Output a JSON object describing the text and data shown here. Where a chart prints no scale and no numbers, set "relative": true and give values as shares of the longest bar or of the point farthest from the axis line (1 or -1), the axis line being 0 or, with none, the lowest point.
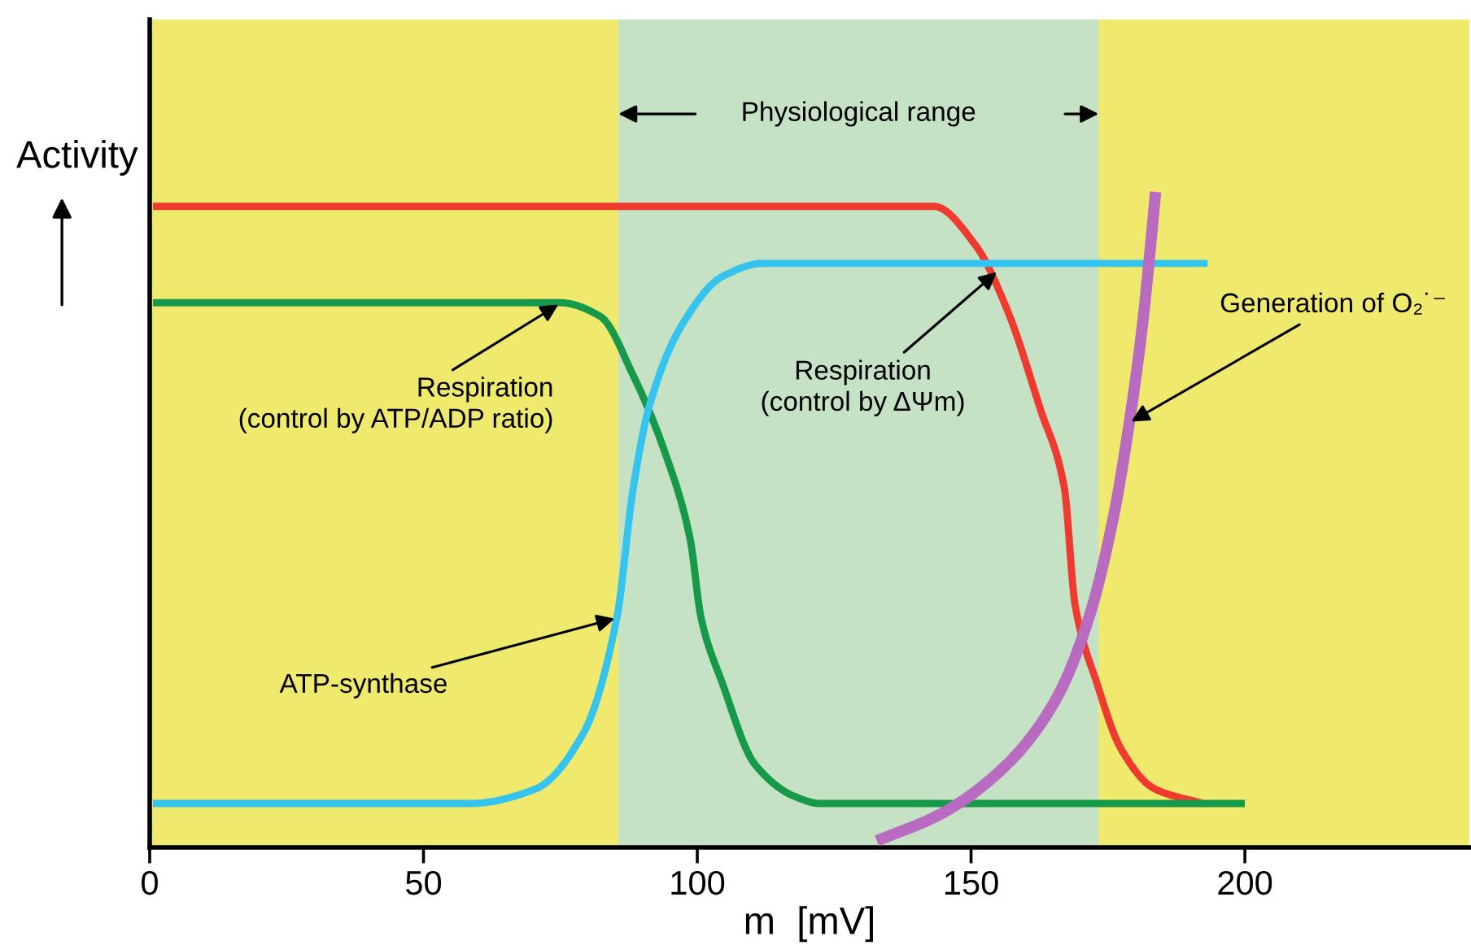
{
  "chart_data": {
    "type": "line",
    "relative": true,
    "xlabel": "m  [mV]",
    "ylabel": "Activity",
    "xlim": [
      0,
      241
    ],
    "xticks": [
      0,
      50,
      100,
      150,
      200
    ],
    "grid": false,
    "legend": false,
    "marker": "none",
    "line_style": "solid",
    "series": [
      {
        "color": "#ee3a2f",
        "x": [
          0.6,
          143.2,
          150.7,
          156.6,
          162.6,
          167,
          169,
          173,
          177.4,
          183.4,
          192.3
        ],
        "values": [
          0.978,
          0.978,
          0.92,
          0.82,
          0.67,
          0.55,
          0.37,
          0.25,
          0.15,
          0.09,
          0.067
        ]
      },
      {
        "color": "#17994a",
        "x": [
          0.6,
          74.9,
          82.3,
          88.3,
          94.2,
          98.7,
          100.7,
          104.6,
          110.5,
          118,
          122.4,
          200
        ],
        "values": [
          0.831,
          0.831,
          0.81,
          0.72,
          0.6,
          0.47,
          0.35,
          0.25,
          0.127,
          0.077,
          0.067,
          0.067
        ]
      },
      {
        "color": "#35c4f0",
        "x": [
          0.6,
          58.5,
          70.4,
          79.3,
          85.3,
          88.3,
          91.2,
          97.2,
          104.6,
          112,
          193.2
        ],
        "values": [
          0.067,
          0.067,
          0.089,
          0.176,
          0.35,
          0.548,
          0.672,
          0.797,
          0.871,
          0.891,
          0.891
        ]
      },
      {
        "color": "#b86bc0",
        "x": [
          132.8,
          144.7,
          156.6,
          165.5,
          171.5,
          175.9,
          178.9,
          181.3,
          182.8,
          183.7
        ],
        "values": [
          0.01,
          0.052,
          0.127,
          0.226,
          0.35,
          0.5,
          0.648,
          0.797,
          0.92,
          1.0
        ]
      }
    ],
    "bands": [
      {
        "axis": "x",
        "from": 85.6,
        "to": 173.3,
        "label": "Physiological range",
        "color": "#c5e2c5"
      }
    ],
    "annotations": [
      {
        "text": "Respiration\n(control by ATP/ADP ratio)",
        "x": 75,
        "y": 0.83
      },
      {
        "text": "Respiration\n(control by ΔΨm)",
        "x": 155,
        "y": 0.88
      },
      {
        "text": "Generation of O₂˙⁻",
        "x": 178.9,
        "y": 0.648
      },
      {
        "text": "ATP-synthase",
        "x": 85.3,
        "y": 0.35
      }
    ]
  }
}
